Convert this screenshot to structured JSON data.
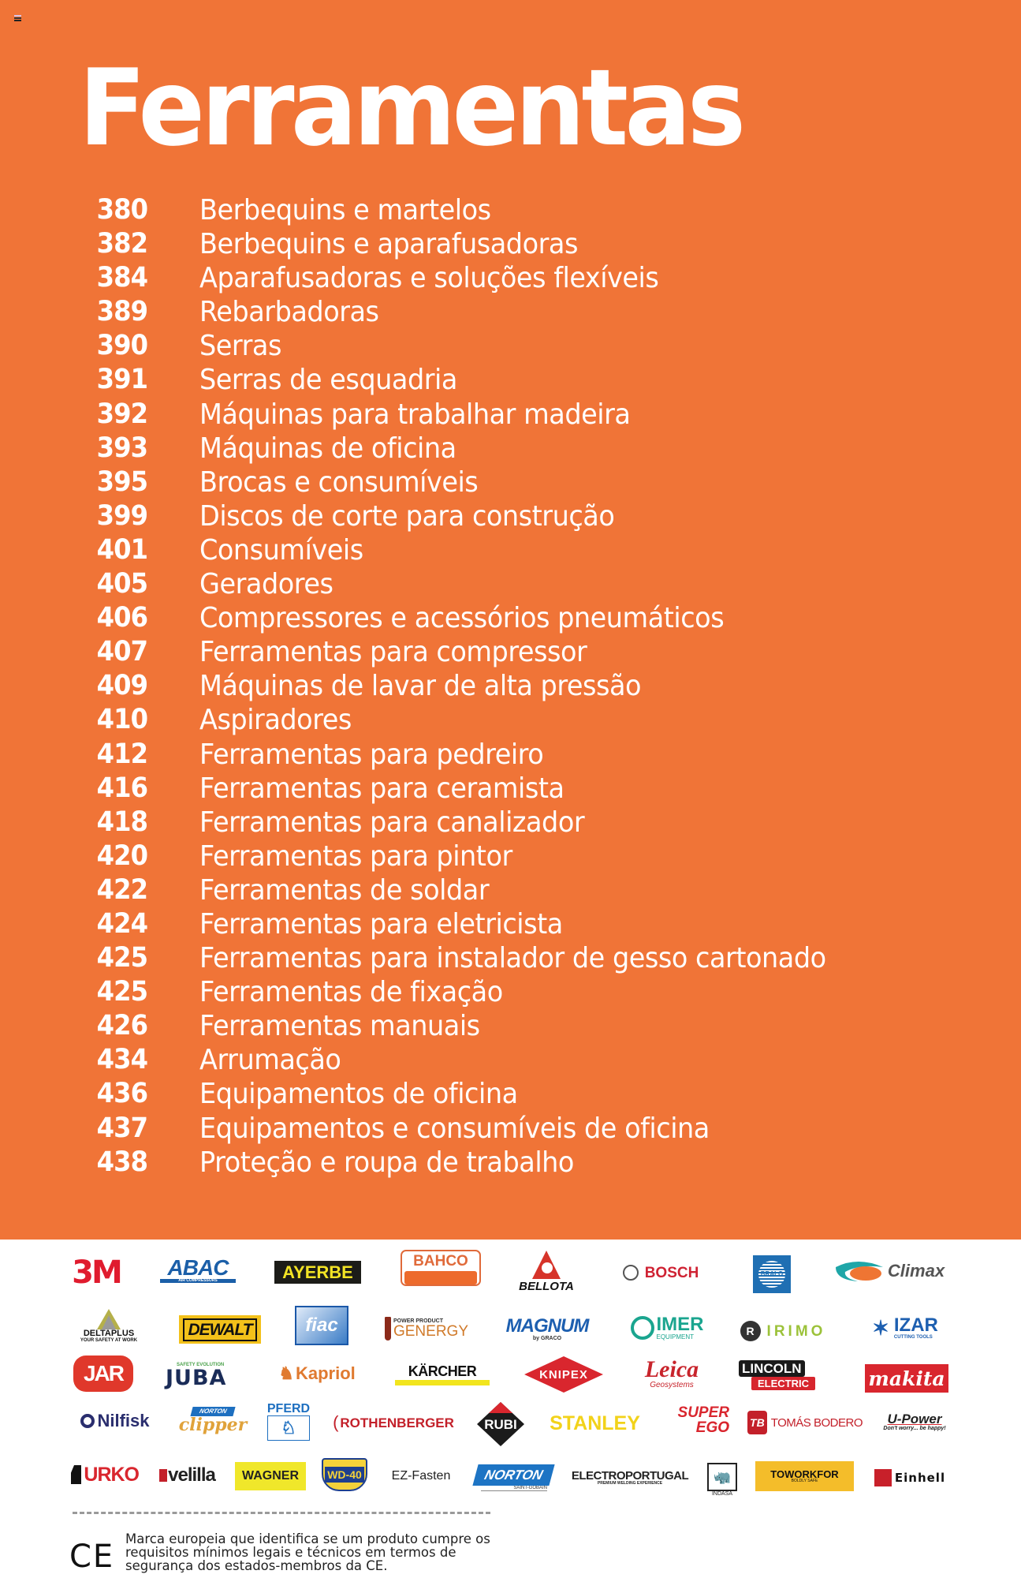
{
  "page": {
    "background_color": "#f07437",
    "title": "Ferramentas"
  },
  "toc": [
    {
      "page": "380",
      "label": "Berbequins e martelos"
    },
    {
      "page": "382",
      "label": "Berbequins e aparafusadoras"
    },
    {
      "page": "384",
      "label": "Aparafusadoras e soluções flexíveis"
    },
    {
      "page": "389",
      "label": "Rebarbadoras"
    },
    {
      "page": "390",
      "label": "Serras"
    },
    {
      "page": "391",
      "label": "Serras de esquadria"
    },
    {
      "page": "392",
      "label": "Máquinas para trabalhar madeira"
    },
    {
      "page": "393",
      "label": "Máquinas de oficina"
    },
    {
      "page": "395",
      "label": "Brocas e consumíveis"
    },
    {
      "page": "399",
      "label": "Discos de corte para construção"
    },
    {
      "page": "401",
      "label": "Consumíveis"
    },
    {
      "page": "405",
      "label": "Geradores"
    },
    {
      "page": "406",
      "label": "Compressores e acessórios pneumáticos"
    },
    {
      "page": "407",
      "label": "Ferramentas para compressor"
    },
    {
      "page": "409",
      "label": "Máquinas de lavar de alta pressão"
    },
    {
      "page": "410",
      "label": "Aspiradores"
    },
    {
      "page": "412",
      "label": "Ferramentas para pedreiro"
    },
    {
      "page": "416",
      "label": "Ferramentas para ceramista"
    },
    {
      "page": "418",
      "label": "Ferramentas para canalizador"
    },
    {
      "page": "420",
      "label": "Ferramentas para pintor"
    },
    {
      "page": "422",
      "label": "Ferramentas de soldar"
    },
    {
      "page": "424",
      "label": "Ferramentas para eletricista"
    },
    {
      "page": "425",
      "label": "Ferramentas para instalador de gesso cartonado"
    },
    {
      "page": "425",
      "label": "Ferramentas de fixação"
    },
    {
      "page": "426",
      "label": "Ferramentas manuais"
    },
    {
      "page": "434",
      "label": "Arrumação"
    },
    {
      "page": "436",
      "label": "Equipamentos de oficina"
    },
    {
      "page": "437",
      "label": "Equipamentos e consumíveis de oficina"
    },
    {
      "page": "438",
      "label": "Proteção e roupa de trabalho"
    }
  ],
  "brands": {
    "row1": [
      "3M",
      "ABAC",
      "AYERBE",
      "BAHCO",
      "BELLOTA",
      "BOSCH",
      "BRALO",
      "Climax"
    ],
    "row2": [
      "DELTAPLUS",
      "DEWALT",
      "fiac",
      "GENERGY",
      "MAGNUM",
      "IMER",
      "IRIMO",
      "IZAR"
    ],
    "row3": [
      "JAR",
      "JUBA",
      "Kapriol",
      "KÄRCHER",
      "KNIPEX",
      "Leica",
      "LINCOLN ELECTRIC",
      "makita"
    ],
    "row4": [
      "Nilfisk",
      "clipper",
      "PFERD",
      "ROTHENBERGER",
      "RUBI",
      "STANLEY",
      "SUPER EGO",
      "TOMÁS BODERO",
      "U-Power"
    ],
    "row5": [
      "URKO",
      "velilla",
      "WAGNER",
      "WD-40",
      "EZ-Fasten",
      "NORTON",
      "ELECTROPORTUGAL",
      "INDASA",
      "TOWORKFOR",
      "Einhell"
    ]
  },
  "brand_sublabels": {
    "abac": "AIR COMPRESSORS",
    "bellota_icon": "bellota-icon",
    "deltaplus": "YOUR SAFETY AT WORK",
    "fiac": "AIR COMPRESSORS",
    "genergy": "POWER PRODUCT",
    "magnum": "by GRACO",
    "imer": "EQUIPMENT",
    "izar": "CUTTING TOOLS",
    "juba": "SAFETY EVOLUTION",
    "leica": "Geosystems",
    "lincoln_top": "LINCOLN",
    "lincoln_bottom": "ELECTRIC",
    "clipper_top": "NORTON",
    "super": "SUPER",
    "ego": "EGO",
    "upower": "Don't worry... be happy!",
    "norton": "SAINT-GOBAIN",
    "electro_sub": "PREMIUM WELDING EXPERIENCE",
    "toworkfor": "BOLDLY SAFE"
  },
  "ce": {
    "mark": "CE",
    "text": "Marca europeia que identifica se um produto cumpre os requisitos mínimos legais e técnicos em termos de segurança dos estados-membros da CE."
  }
}
